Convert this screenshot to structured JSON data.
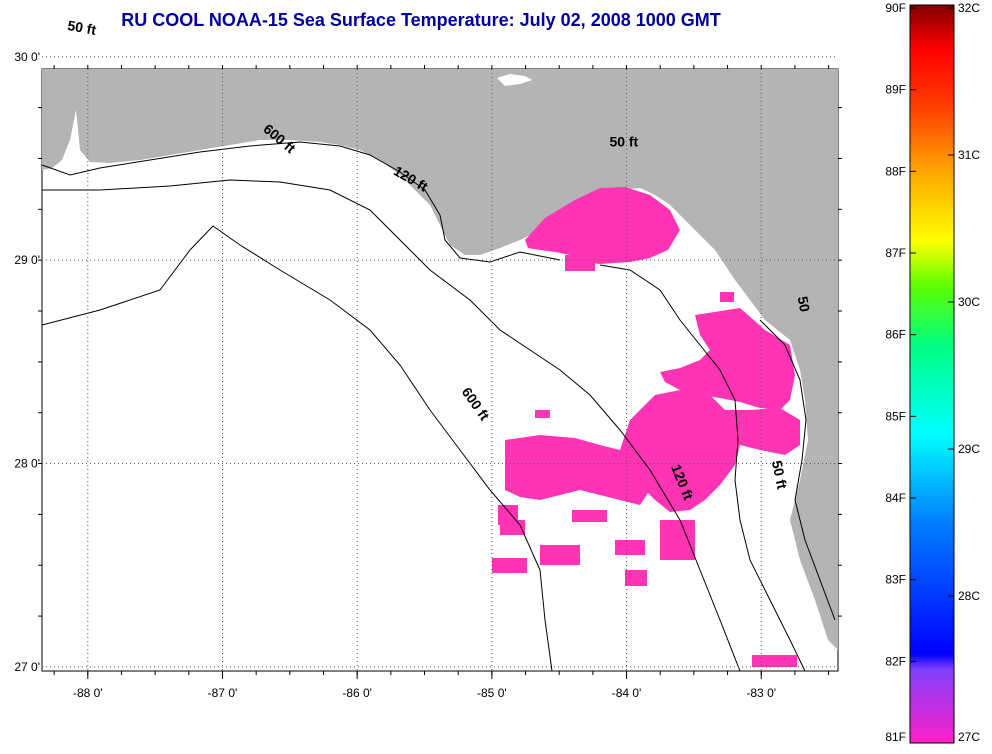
{
  "title": "RU COOL  NOAA-15  Sea Surface Temperature:  July 02, 2008 1000 GMT",
  "map": {
    "lon_range": [
      -88.34,
      -82.43
    ],
    "lat_range": [
      26.98,
      29.94
    ],
    "lon_ticks": [
      {
        "value": -88,
        "label": "-88 0'"
      },
      {
        "value": -87,
        "label": "-87 0'"
      },
      {
        "value": -86,
        "label": "-86 0'"
      },
      {
        "value": -85,
        "label": "-85 0'"
      },
      {
        "value": -84,
        "label": "-84 0'"
      },
      {
        "value": -83,
        "label": "-83 0'"
      }
    ],
    "lat_ticks": [
      {
        "value": 30,
        "label": "30 0'"
      },
      {
        "value": 29,
        "label": "29 0'"
      },
      {
        "value": 28,
        "label": "28 0'"
      },
      {
        "value": 27,
        "label": "27 0'"
      }
    ],
    "grid": "dotted",
    "land_color": "#b4b4b4",
    "sst_color": "#ff34b4",
    "contour_labels": [
      {
        "text": "50 ft",
        "lon": -88.05,
        "lat": 30.12,
        "rotation": 10
      },
      {
        "text": "600 ft",
        "lon": -86.6,
        "lat": 29.58,
        "rotation": 40
      },
      {
        "text": "120 ft",
        "lon": -85.62,
        "lat": 29.38,
        "rotation": 30
      },
      {
        "text": "50 ft",
        "lon": -84.02,
        "lat": 29.56,
        "rotation": 0
      },
      {
        "text": "600 ft",
        "lon": -85.15,
        "lat": 28.28,
        "rotation": 55
      },
      {
        "text": "120 ft",
        "lon": -83.62,
        "lat": 27.9,
        "rotation": 68
      },
      {
        "text": "50 ft",
        "lon": -82.9,
        "lat": 27.94,
        "rotation": 78
      },
      {
        "text": "50",
        "lon": -82.72,
        "lat": 28.78,
        "rotation": 80
      }
    ]
  },
  "colorbar": {
    "labels_f": [
      "90F",
      "89F",
      "88F",
      "87F",
      "86F",
      "85F",
      "84F",
      "83F",
      "82F",
      "81F"
    ],
    "labels_c": [
      "32C",
      "31C",
      "30C",
      "29C",
      "28C",
      "27C"
    ],
    "colors": [
      "#ff20c8",
      "#8040ff",
      "#0000ff",
      "#00a0ff",
      "#00ffff",
      "#00ff80",
      "#40ff00",
      "#ffff00",
      "#ffa000",
      "#ff4000",
      "#ff0000",
      "#800000"
    ]
  }
}
